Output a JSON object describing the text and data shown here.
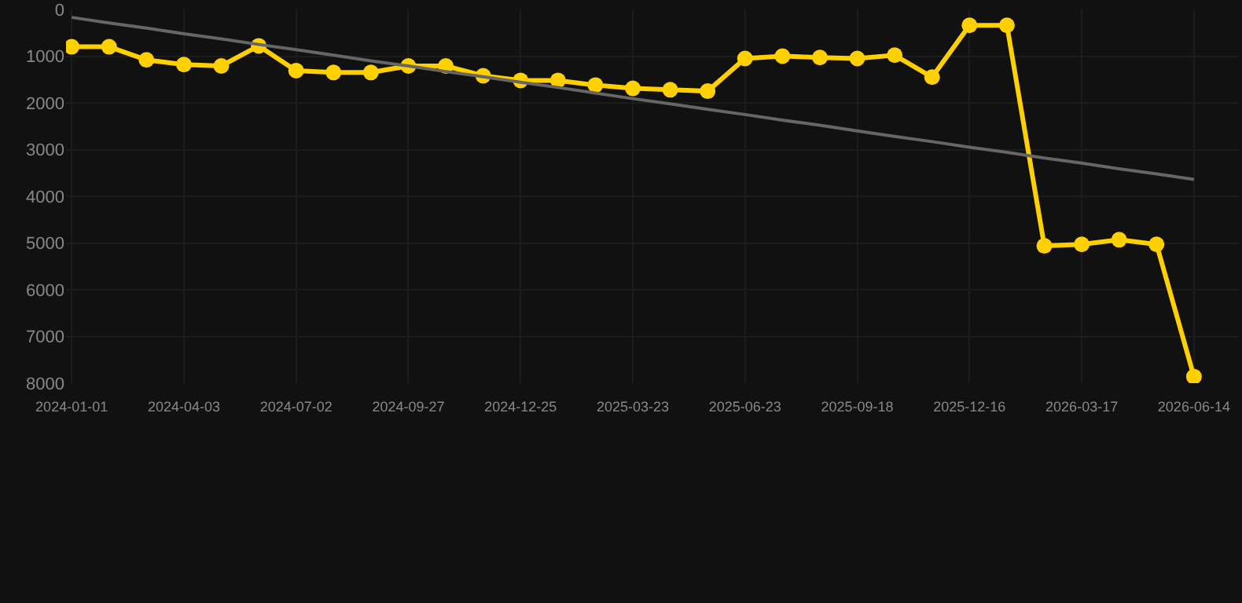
{
  "chart_data": {
    "type": "line",
    "categories": [
      "2024-01-01",
      null,
      null,
      "2024-04-03",
      null,
      null,
      "2024-07-02",
      null,
      null,
      "2024-09-27",
      null,
      null,
      "2024-12-25",
      null,
      null,
      "2025-03-23",
      null,
      null,
      "2025-06-23",
      null,
      null,
      "2025-09-18",
      null,
      null,
      "2025-12-16",
      null,
      null,
      "2026-03-17",
      null,
      null,
      "2026-06-14"
    ],
    "series": [
      {
        "color": "#ffd000",
        "marker": "circle",
        "values": [
          800,
          800,
          1080,
          1180,
          1210,
          780,
          1310,
          1350,
          1350,
          1210,
          1210,
          1420,
          1520,
          1520,
          1620,
          1690,
          1720,
          1750,
          1050,
          1000,
          1030,
          1050,
          980,
          1450,
          340,
          340,
          5060,
          5030,
          4930,
          5030,
          7860
        ]
      },
      {
        "type": "line",
        "color": "#666666",
        "marker": "none",
        "values": [
          170,
          290,
          400,
          520,
          630,
          750,
          860,
          980,
          1100,
          1210,
          1330,
          1440,
          1560,
          1670,
          1790,
          1910,
          2020,
          2140,
          2250,
          2370,
          2480,
          2600,
          2720,
          2830,
          2950,
          3060,
          3180,
          3290,
          3410,
          3520,
          3640
        ]
      }
    ],
    "ylim": [
      8000,
      0
    ],
    "yticks": [
      0,
      1000,
      2000,
      3000,
      4000,
      5000,
      6000,
      7000,
      8000
    ],
    "grid": true
  }
}
